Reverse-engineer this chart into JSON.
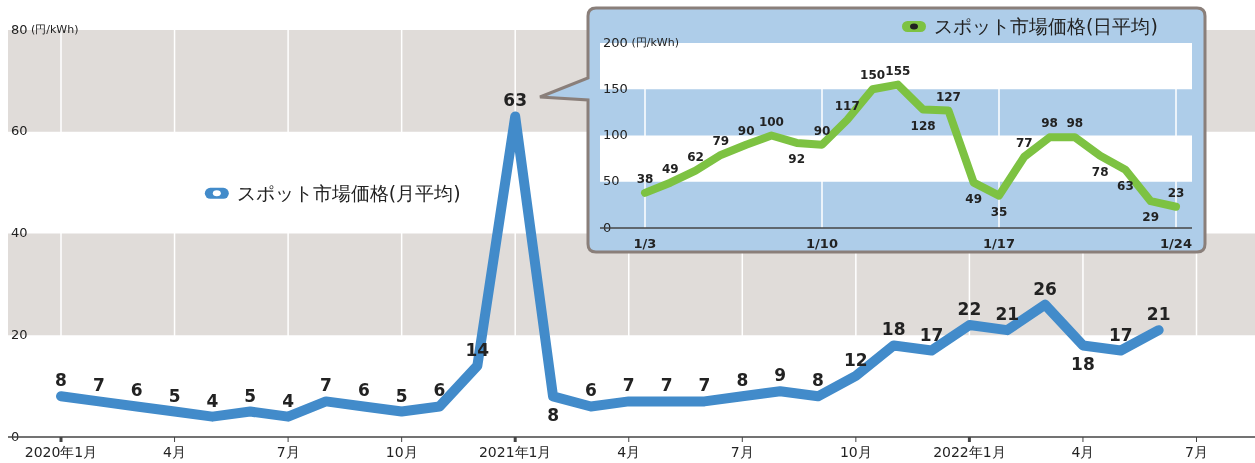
{
  "chart_data": [
    {
      "type": "line",
      "ylabel": "(円/kWh)",
      "categories": [
        "2020年1月",
        null,
        null,
        "4月",
        null,
        null,
        "7月",
        null,
        null,
        "10月",
        null,
        null,
        "2021年1月",
        null,
        null,
        "4月",
        null,
        null,
        "7月",
        null,
        null,
        "10月",
        null,
        null,
        "2022年1月",
        null,
        null,
        "4月",
        null,
        null,
        "7月"
      ],
      "series": [
        {
          "name": "スポット市場価格(月平均)",
          "color": "#428bca",
          "values": [
            8,
            7,
            6,
            5,
            4,
            5,
            4,
            7,
            6,
            5,
            6,
            14,
            63,
            8,
            6,
            7,
            7,
            7,
            8,
            9,
            8,
            12,
            18,
            17,
            22,
            21,
            26,
            18,
            17,
            21,
            null
          ]
        }
      ],
      "ylim": [
        0,
        80
      ],
      "yticks": [
        0,
        20,
        40,
        60,
        80
      ],
      "grid": true,
      "legend": "left",
      "data_labels": true
    },
    {
      "type": "line",
      "ylabel": "(円/kWh)",
      "categories": [
        "1/3",
        null,
        null,
        null,
        null,
        null,
        null,
        "1/10",
        null,
        null,
        null,
        null,
        null,
        null,
        "1/17",
        null,
        null,
        null,
        null,
        null,
        null,
        "1/24"
      ],
      "series": [
        {
          "name": "スポット市場価格(日平均)",
          "color": "#7dc242",
          "values": [
            38,
            49,
            62,
            79,
            90,
            100,
            92,
            90,
            117,
            150,
            155,
            128,
            127,
            49,
            35,
            77,
            98,
            98,
            78,
            63,
            29,
            23
          ]
        }
      ],
      "ylim": [
        0,
        200
      ],
      "yticks": [
        0,
        50,
        100,
        150,
        200
      ],
      "grid": true,
      "legend": "top right",
      "data_labels": true
    }
  ]
}
